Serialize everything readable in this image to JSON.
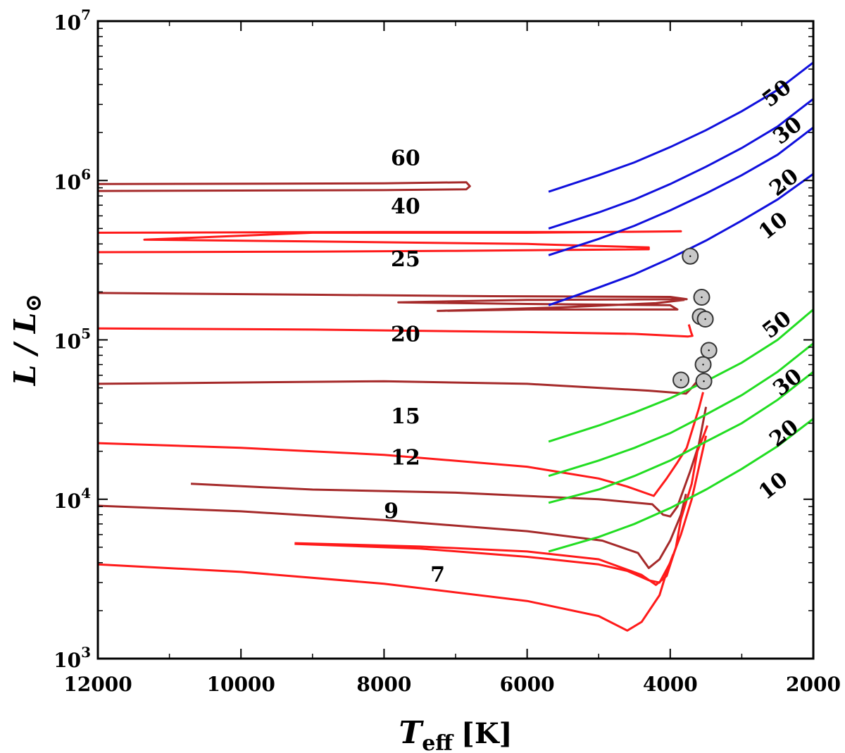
{
  "chart_data": {
    "type": "line",
    "title": "",
    "xlabel": {
      "main": "T",
      "sub": "eff",
      "unit": "[K]"
    },
    "ylabel": {
      "text": "L / L",
      "sun_symbol": "⊙"
    },
    "xlim": [
      12000,
      2000
    ],
    "ylim": [
      1000,
      10000000
    ],
    "yscale": "log",
    "x_ticks": [
      {
        "value": 12000,
        "label": "12000"
      },
      {
        "value": 10000,
        "label": "10000"
      },
      {
        "value": 8000,
        "label": "8000"
      },
      {
        "value": 6000,
        "label": "6000"
      },
      {
        "value": 4000,
        "label": "4000"
      },
      {
        "value": 2000,
        "label": "2000"
      }
    ],
    "y_ticks": [
      {
        "value": 1000,
        "base": "10",
        "exp": "3"
      },
      {
        "value": 10000,
        "base": "10",
        "exp": "4"
      },
      {
        "value": 100000,
        "base": "10",
        "exp": "5"
      },
      {
        "value": 1000000,
        "base": "10",
        "exp": "6"
      },
      {
        "value": 10000000,
        "base": "10",
        "exp": "7"
      }
    ],
    "colors": {
      "red": "#ff1a1a",
      "brown": "#a52a2a",
      "blue": "#1010dd",
      "green": "#22dd22",
      "point_fill": "#c8c8c8"
    },
    "tracks": [
      {
        "name": "60",
        "color": "brown",
        "label": "60",
        "label_at": [
          7700,
          1250000
        ],
        "points": [
          [
            12000,
            950000
          ],
          [
            8000,
            960000
          ],
          [
            6850,
            975000
          ],
          [
            6800,
            920000
          ],
          [
            6850,
            880000
          ],
          [
            8000,
            870000
          ],
          [
            12000,
            860000
          ]
        ]
      },
      {
        "name": "40",
        "color": "red",
        "label": "40",
        "label_at": [
          7700,
          620000
        ],
        "points": [
          [
            12000,
            470000
          ],
          [
            8000,
            475000
          ],
          [
            5000,
            475000
          ],
          [
            3850,
            480000
          ],
          [
            6000,
            470000
          ],
          [
            9000,
            470000
          ],
          [
            11350,
            425000
          ],
          [
            9000,
            415000
          ],
          [
            6000,
            400000
          ],
          [
            4300,
            380000
          ],
          [
            4300,
            370000
          ],
          [
            7000,
            362000
          ],
          [
            9000,
            358000
          ],
          [
            12000,
            355000
          ]
        ]
      },
      {
        "name": "25",
        "color": "brown",
        "label": "25",
        "label_at": [
          7700,
          290000
        ],
        "points": [
          [
            12000,
            197000
          ],
          [
            9000,
            192000
          ],
          [
            6500,
            188000
          ],
          [
            4000,
            186000
          ],
          [
            3770,
            180000
          ],
          [
            6000,
            178000
          ],
          [
            7800,
            172000
          ],
          [
            6000,
            168000
          ],
          [
            4000,
            165000
          ],
          [
            3900,
            155000
          ],
          [
            6000,
            155000
          ],
          [
            7250,
            152000
          ],
          [
            5500,
            160000
          ],
          [
            4200,
            170000
          ],
          [
            3800,
            178000
          ]
        ]
      },
      {
        "name": "20",
        "color": "red",
        "label": "20",
        "label_at": [
          7700,
          98000
        ],
        "points": [
          [
            12000,
            118000
          ],
          [
            9000,
            116000
          ],
          [
            6000,
            112000
          ],
          [
            4500,
            109000
          ],
          [
            3750,
            105000
          ],
          [
            3690,
            106000
          ],
          [
            3710,
            112000
          ],
          [
            3740,
            125000
          ]
        ]
      },
      {
        "name": "15",
        "color": "brown",
        "label": "15",
        "label_at": [
          7700,
          30000
        ],
        "points": [
          [
            12000,
            53000
          ],
          [
            10000,
            54000
          ],
          [
            8000,
            55000
          ],
          [
            6000,
            53000
          ],
          [
            5000,
            50000
          ],
          [
            4300,
            48000
          ],
          [
            3780,
            46000
          ],
          [
            3700,
            50000
          ],
          [
            3580,
            58000
          ]
        ]
      },
      {
        "name": "12",
        "color": "red",
        "label": "12",
        "label_at": [
          7700,
          16500
        ],
        "points": [
          [
            12000,
            22500
          ],
          [
            10000,
            21000
          ],
          [
            8000,
            19000
          ],
          [
            6000,
            16000
          ],
          [
            5000,
            13500
          ],
          [
            4600,
            12000
          ],
          [
            4230,
            10500
          ],
          [
            4050,
            13500
          ],
          [
            3900,
            17000
          ],
          [
            3770,
            21000
          ],
          [
            3600,
            37000
          ],
          [
            3540,
            47000
          ]
        ]
      },
      {
        "name": "10",
        "color": "brown",
        "label": "",
        "label_at": null,
        "points": [
          [
            10700,
            12500
          ],
          [
            9000,
            11500
          ],
          [
            7000,
            11000
          ],
          [
            5000,
            10000
          ],
          [
            4250,
            9300
          ],
          [
            4100,
            8000
          ],
          [
            4000,
            7800
          ],
          [
            3900,
            9000
          ],
          [
            3720,
            15000
          ],
          [
            3600,
            22000
          ],
          [
            3500,
            38000
          ]
        ]
      },
      {
        "name": "9",
        "color": "brown",
        "label": "9",
        "label_at": [
          7900,
          7600
        ],
        "points": [
          [
            12000,
            9100
          ],
          [
            10000,
            8400
          ],
          [
            8000,
            7400
          ],
          [
            6000,
            6300
          ],
          [
            4950,
            5500
          ],
          [
            4450,
            4600
          ],
          [
            4300,
            3700
          ],
          [
            4150,
            4200
          ],
          [
            4000,
            5500
          ],
          [
            3850,
            8000
          ],
          [
            3780,
            10800
          ]
        ]
      },
      {
        "name": "8",
        "color": "red",
        "label": "",
        "label_at": null,
        "points": [
          [
            9250,
            5300
          ],
          [
            7500,
            5050
          ],
          [
            6000,
            4700
          ],
          [
            5000,
            4200
          ],
          [
            4400,
            3350
          ],
          [
            4200,
            2900
          ],
          [
            4050,
            3300
          ],
          [
            3920,
            5000
          ],
          [
            3850,
            7500
          ],
          [
            3700,
            12500
          ],
          [
            3620,
            20000
          ],
          [
            3520,
            26000
          ],
          [
            3480,
            29000
          ]
        ]
      },
      {
        "name": "8b",
        "color": "red",
        "label": "",
        "label_at": null,
        "points": [
          [
            9250,
            5250
          ],
          [
            7500,
            4900
          ],
          [
            6000,
            4350
          ],
          [
            5000,
            3900
          ],
          [
            4600,
            3550
          ],
          [
            4300,
            3100
          ],
          [
            4150,
            3000
          ],
          [
            4000,
            4000
          ],
          [
            3850,
            6000
          ],
          [
            3700,
            10000
          ],
          [
            3500,
            25000
          ]
        ]
      },
      {
        "name": "7",
        "color": "red",
        "label": "7",
        "label_at": [
          7250,
          3050
        ],
        "points": [
          [
            12000,
            3900
          ],
          [
            10000,
            3500
          ],
          [
            8000,
            2950
          ],
          [
            6000,
            2300
          ],
          [
            5000,
            1850
          ],
          [
            4600,
            1500
          ],
          [
            4400,
            1700
          ],
          [
            4150,
            2500
          ],
          [
            4050,
            3500
          ],
          [
            3960,
            4500
          ]
        ]
      }
    ],
    "isochrones": [
      {
        "name": "blue-50",
        "color": "blue",
        "label": "50",
        "label_at": [
          2450,
          3250000
        ],
        "label_angle": -38,
        "points": [
          [
            5700,
            850000
          ],
          [
            5000,
            1080000
          ],
          [
            4500,
            1300000
          ],
          [
            4000,
            1620000
          ],
          [
            3500,
            2070000
          ],
          [
            3000,
            2720000
          ],
          [
            2500,
            3700000
          ],
          [
            2000,
            5500000
          ]
        ]
      },
      {
        "name": "blue-30",
        "color": "blue",
        "label": "30",
        "label_at": [
          2300,
          1900000
        ],
        "label_angle": -38,
        "points": [
          [
            5700,
            500000
          ],
          [
            5000,
            630000
          ],
          [
            4500,
            760000
          ],
          [
            4000,
            950000
          ],
          [
            3500,
            1220000
          ],
          [
            3000,
            1600000
          ],
          [
            2500,
            2180000
          ],
          [
            2000,
            3250000
          ]
        ]
      },
      {
        "name": "blue-20",
        "color": "blue",
        "label": "20",
        "label_at": [
          2350,
          900000
        ],
        "label_angle": -38,
        "points": [
          [
            5700,
            340000
          ],
          [
            5000,
            430000
          ],
          [
            4500,
            520000
          ],
          [
            4000,
            650000
          ],
          [
            3500,
            830000
          ],
          [
            3000,
            1080000
          ],
          [
            2500,
            1450000
          ],
          [
            2000,
            2150000
          ]
        ]
      },
      {
        "name": "blue-10",
        "color": "blue",
        "label": "10",
        "label_at": [
          2500,
          480000
        ],
        "label_angle": -38,
        "points": [
          [
            5700,
            165000
          ],
          [
            5000,
            213000
          ],
          [
            4500,
            258000
          ],
          [
            4000,
            325000
          ],
          [
            3500,
            420000
          ],
          [
            3000,
            560000
          ],
          [
            2500,
            760000
          ],
          [
            2000,
            1100000
          ]
        ]
      },
      {
        "name": "green-50",
        "color": "green",
        "label": "50",
        "label_at": [
          2450,
          115000
        ],
        "label_angle": -38,
        "points": [
          [
            5700,
            23000
          ],
          [
            5000,
            29000
          ],
          [
            4500,
            35000
          ],
          [
            4000,
            43000
          ],
          [
            3500,
            55000
          ],
          [
            3000,
            72000
          ],
          [
            2500,
            100000
          ],
          [
            2000,
            155000
          ]
        ]
      },
      {
        "name": "green-30",
        "color": "green",
        "label": "30",
        "label_at": [
          2300,
          50000
        ],
        "label_angle": -38,
        "points": [
          [
            5700,
            14000
          ],
          [
            5000,
            17500
          ],
          [
            4500,
            21000
          ],
          [
            4000,
            26000
          ],
          [
            3500,
            34000
          ],
          [
            3000,
            45000
          ],
          [
            2500,
            63000
          ],
          [
            2000,
            95000
          ]
        ]
      },
      {
        "name": "green-20",
        "color": "green",
        "label": "20",
        "label_at": [
          2350,
          24000
        ],
        "label_angle": -38,
        "points": [
          [
            5700,
            9500
          ],
          [
            5000,
            11500
          ],
          [
            4500,
            14000
          ],
          [
            4000,
            17500
          ],
          [
            3500,
            23000
          ],
          [
            3000,
            30000
          ],
          [
            2500,
            42000
          ],
          [
            2000,
            63000
          ]
        ]
      },
      {
        "name": "green-10",
        "color": "green",
        "label": "10",
        "label_at": [
          2500,
          11200
        ],
        "label_angle": -38,
        "points": [
          [
            5700,
            4700
          ],
          [
            5000,
            5800
          ],
          [
            4500,
            7000
          ],
          [
            4000,
            8800
          ],
          [
            3500,
            11500
          ],
          [
            3000,
            15500
          ],
          [
            2500,
            21500
          ],
          [
            2000,
            32000
          ]
        ]
      }
    ],
    "observed_stars": [
      {
        "teff": 3720,
        "lum": 335000
      },
      {
        "teff": 3560,
        "lum": 185000
      },
      {
        "teff": 3580,
        "lum": 140000
      },
      {
        "teff": 3510,
        "lum": 135000
      },
      {
        "teff": 3460,
        "lum": 86000
      },
      {
        "teff": 3540,
        "lum": 70000
      },
      {
        "teff": 3850,
        "lum": 56000
      },
      {
        "teff": 3530,
        "lum": 55000
      }
    ]
  }
}
